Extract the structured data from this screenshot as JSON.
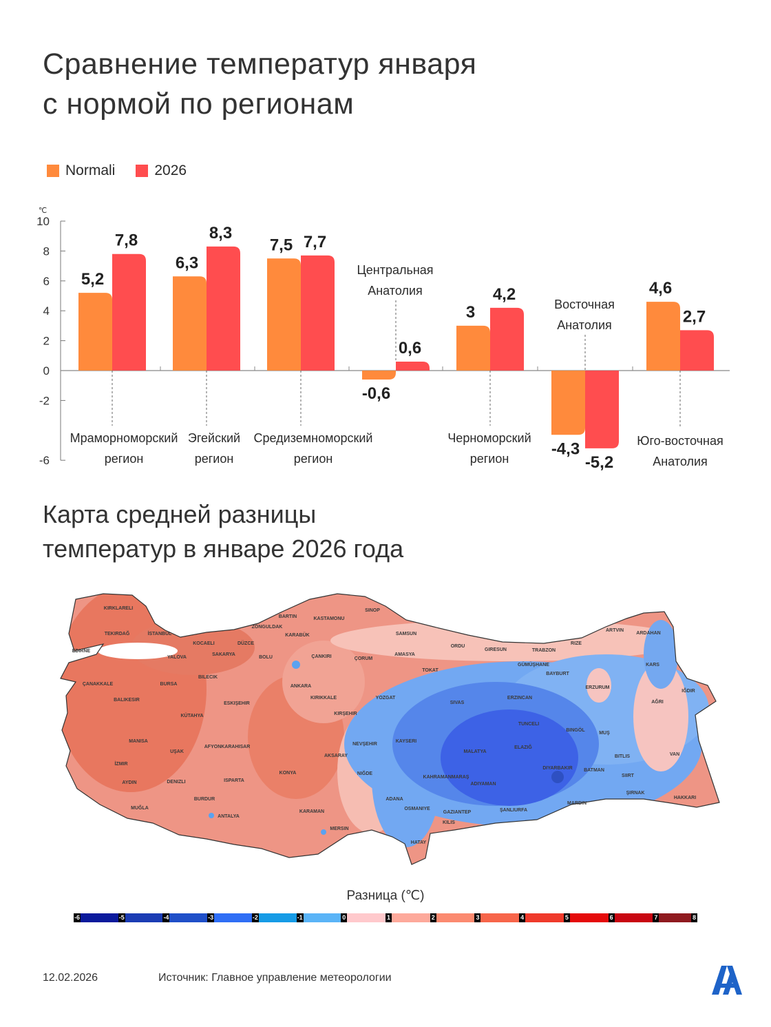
{
  "title": "Сравнение температур января с нормой по регионам",
  "title_lines": [
    "Сравнение температур января",
    "с нормой по регионам"
  ],
  "legend": [
    {
      "label": "Normali",
      "color": "#ff8a3c"
    },
    {
      "label": "2026",
      "color": "#ff4d4f"
    }
  ],
  "chart_data": {
    "type": "bar",
    "title": "Сравнение температур января с нормой по регионам",
    "ylabel": "℃",
    "ylim": [
      -6,
      10
    ],
    "yticks": [
      10,
      8,
      6,
      4,
      2,
      0,
      -2,
      -6
    ],
    "grid": false,
    "legend_position": "top-left",
    "categories": [
      [
        "Мраморноморский",
        "регион"
      ],
      [
        "Эгейский",
        "регион"
      ],
      [
        "Средиземноморский",
        "регион"
      ],
      [
        "Центральная",
        "Анатолия"
      ],
      [
        "Черноморский",
        "регион"
      ],
      [
        "Восточная",
        "Анатолия"
      ],
      [
        "Юго-восточная",
        "Анатолия"
      ]
    ],
    "series": [
      {
        "name": "Normali",
        "color": "#ff8a3c",
        "values": [
          5.2,
          6.3,
          7.5,
          -0.6,
          3,
          -4.3,
          4.6
        ],
        "labels": [
          "5,2",
          "6,3",
          "7,5",
          "-0,6",
          "3",
          "-4,3",
          "4,6"
        ]
      },
      {
        "name": "2026",
        "color": "#ff4d4f",
        "values": [
          7.8,
          8.3,
          7.7,
          0.6,
          4.2,
          -5.2,
          2.7
        ],
        "labels": [
          "7,8",
          "8,3",
          "7,7",
          "0,6",
          "4,2",
          "-5,2",
          "2,7"
        ]
      }
    ]
  },
  "map": {
    "title_lines": [
      "Карта средней разницы",
      "температур в январе 2026 года"
    ],
    "provinces": [
      "KIRKLARELI",
      "TEKIRDAĞ",
      "İSTANBUL",
      "EDIRNE",
      "ÇANAKKALE",
      "BALIKESIR",
      "BURSA",
      "BILECIK",
      "KOCAELI",
      "SAKARYA",
      "DÜZCE",
      "YALOVA",
      "ZONGULDAK",
      "BARTIN",
      "KARABÜK",
      "KASTAMONU",
      "SINOP",
      "BOLU",
      "ÇANKIRI",
      "ÇORUM",
      "ANKARA",
      "KIRIKKALE",
      "KIRŞEHIR",
      "ESKIŞEHIR",
      "KÜTAHYA",
      "MANISA",
      "UŞAK",
      "AFYONKARAHISAR",
      "İZMIR",
      "AYDIN",
      "DENIZLI",
      "ISPARTA",
      "BURDUR",
      "MUĞLA",
      "ANTALYA",
      "KONYA",
      "AKSARAY",
      "NEVŞEHIR",
      "NIĞDE",
      "KARAMAN",
      "MERSIN",
      "YOZGAT",
      "SAMSUN",
      "AMASYA",
      "TOKAT",
      "ORDU",
      "GIRESUN",
      "TRABZON",
      "RIZE",
      "ARTVIN",
      "ARDAHAN",
      "GÜMÜŞHANE",
      "BAYBURT",
      "KARS",
      "ERZURUM",
      "IĞDIR",
      "AĞRI",
      "SIVAS",
      "ERZINCAN",
      "TUNCELI",
      "BINGÖL",
      "MUŞ",
      "BITLIS",
      "VAN",
      "KAYSERI",
      "MALATYA",
      "ELAZIĞ",
      "DIYARBAKIR",
      "BATMAN",
      "SIIRT",
      "ŞIRNAK",
      "HAKKARI",
      "KAHRAMANMARAŞ",
      "ADIYAMAN",
      "ŞANLIURFA",
      "MARDIN",
      "ADANA",
      "OSMANIYE",
      "GAZIANTEP",
      "KILIS",
      "HATAY"
    ],
    "scale_title": "Разница (℃)",
    "scale": [
      {
        "v": "-6",
        "color": "#0a1a9c"
      },
      {
        "v": "-5",
        "color": "#1b3cb4"
      },
      {
        "v": "-4",
        "color": "#1f4fc8"
      },
      {
        "v": "-3",
        "color": "#2f6ef5"
      },
      {
        "v": "-2",
        "color": "#169be6"
      },
      {
        "v": "-1",
        "color": "#5ab4f7"
      },
      {
        "v": "0",
        "color": "#ffc9cc"
      },
      {
        "v": "1",
        "color": "#fda99b"
      },
      {
        "v": "2",
        "color": "#fb8a70"
      },
      {
        "v": "3",
        "color": "#f7654a"
      },
      {
        "v": "4",
        "color": "#ef3a2b"
      },
      {
        "v": "5",
        "color": "#e50a0a"
      },
      {
        "v": "6",
        "color": "#c80612"
      },
      {
        "v": "7",
        "color": "#8f1a1f"
      }
    ],
    "scale_end": "8"
  },
  "footer": {
    "date": "12.02.2026",
    "source": "Источник: Главное управление метеорологии",
    "logo": "AA",
    "logo_color": "#1e63c8"
  }
}
